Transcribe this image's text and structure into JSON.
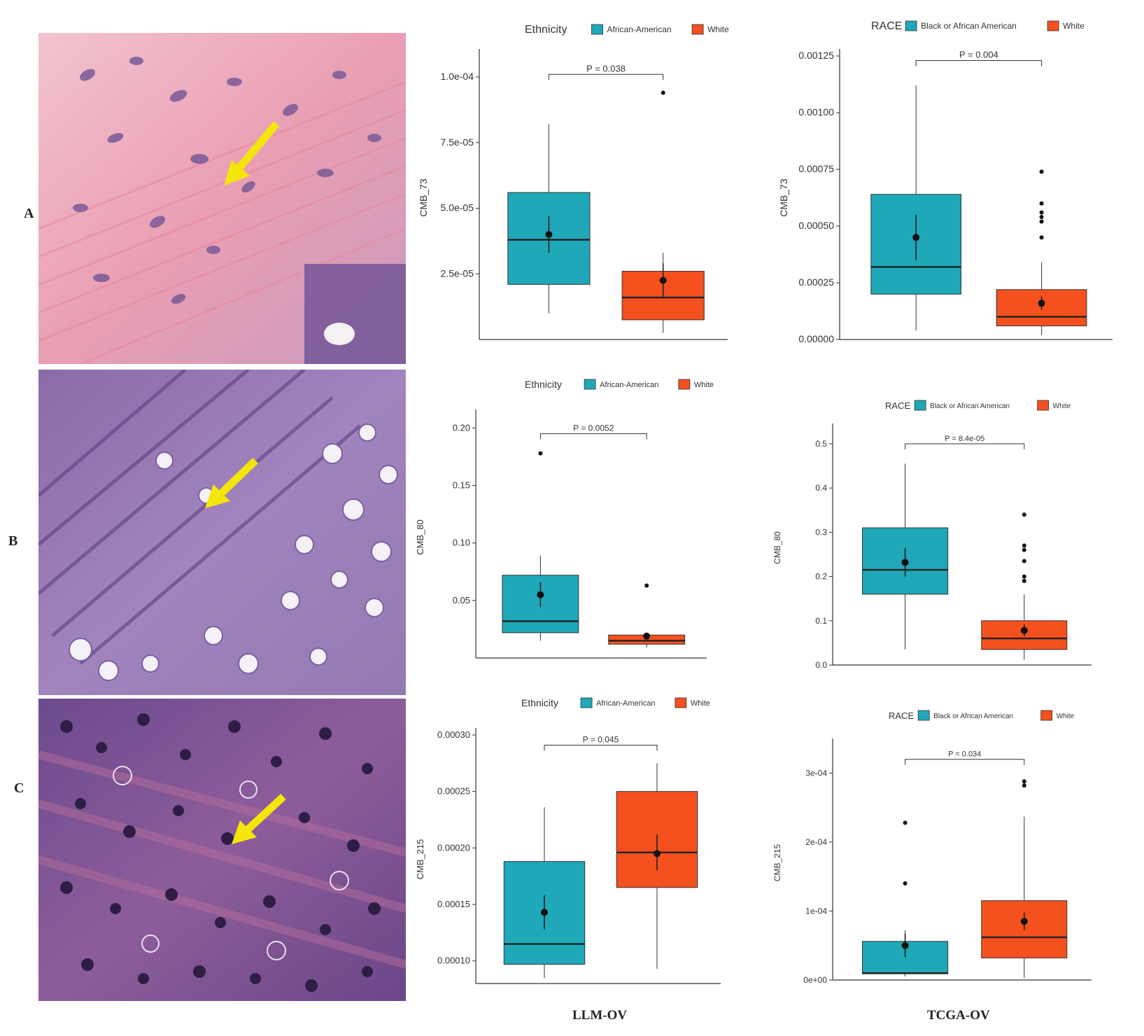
{
  "panels": [
    {
      "letter": "A",
      "image": "histology-pink-stroma",
      "arrow_color": "#f5e60a"
    },
    {
      "letter": "B",
      "image": "histology-purple-glandular",
      "arrow_color": "#f5e60a"
    },
    {
      "letter": "C",
      "image": "histology-dense-purple-cells",
      "arrow_color": "#f5e60a"
    }
  ],
  "colors": {
    "teal": "#1fa8b8",
    "orange": "#f4511e"
  },
  "captions": {
    "left": "LLM-OV",
    "right": "TCGA-OV"
  },
  "chart_data": [
    {
      "id": "A-llm",
      "type": "box",
      "legend_title": "Ethnicity",
      "legend": [
        "African-American",
        "White"
      ],
      "ylabel": "CMB_73",
      "ylim": [
        0,
        0.000108
      ],
      "yticks": [
        2.5e-05,
        5e-05,
        7.5e-05,
        0.0001
      ],
      "ytick_labels": [
        "2.5e-05",
        "5.0e-05",
        "7.5e-05",
        "1.0e-04"
      ],
      "pvalue": "P = 0.038",
      "bracket_y": 0.000101,
      "groups": [
        {
          "name": "African-American",
          "color": "#1fa8b8",
          "whisker_low": 1e-05,
          "q1": 2.1e-05,
          "median": 3.8e-05,
          "q3": 5.6e-05,
          "whisker_high": 8.2e-05,
          "mean": 4e-05,
          "ci": [
            3.3e-05,
            4.7e-05
          ],
          "outliers": []
        },
        {
          "name": "White",
          "color": "#f4511e",
          "whisker_low": 2.5e-06,
          "q1": 7.5e-06,
          "median": 1.6e-05,
          "q3": 2.6e-05,
          "whisker_high": 3.3e-05,
          "mean": 2.25e-05,
          "ci": [
            1.6e-05,
            2.9e-05
          ],
          "outliers": [
            9.4e-05
          ]
        }
      ]
    },
    {
      "id": "A-tcga",
      "type": "box",
      "legend_title": "RACE",
      "legend": [
        "Black or African American",
        "White"
      ],
      "ylabel": "CMB_73",
      "ylim": [
        0,
        0.00125
      ],
      "yticks": [
        0,
        0.00025,
        0.0005,
        0.00075,
        0.001,
        0.00125
      ],
      "ytick_labels": [
        "0.00000",
        "0.00025",
        "0.00050",
        "0.00075",
        "0.00100",
        "0.00125"
      ],
      "pvalue": "P = 0.004",
      "bracket_y": 0.00123,
      "groups": [
        {
          "name": "Black or African American",
          "color": "#1fa8b8",
          "whisker_low": 4e-05,
          "q1": 0.0002,
          "median": 0.00032,
          "q3": 0.00064,
          "whisker_high": 0.00112,
          "mean": 0.00045,
          "ci": [
            0.00035,
            0.00055
          ],
          "outliers": []
        },
        {
          "name": "White",
          "color": "#f4511e",
          "whisker_low": 2e-05,
          "q1": 6e-05,
          "median": 0.0001,
          "q3": 0.00022,
          "whisker_high": 0.00034,
          "mean": 0.00016,
          "ci": [
            0.00013,
            0.00019
          ],
          "outliers": [
            0.00045,
            0.00052,
            0.00054,
            0.00056,
            0.0006,
            0.00074
          ]
        }
      ]
    },
    {
      "id": "B-llm",
      "type": "box",
      "legend_title": "Ethnicity",
      "legend": [
        "African-American",
        "White"
      ],
      "ylabel": "CMB_80",
      "ylim": [
        0,
        0.21
      ],
      "yticks": [
        0.05,
        0.1,
        0.15,
        0.2
      ],
      "ytick_labels": [
        "0.05",
        "0.10",
        "0.15",
        "0.20"
      ],
      "pvalue": "P = 0.0052",
      "bracket_y": 0.195,
      "groups": [
        {
          "name": "African-American",
          "color": "#1fa8b8",
          "whisker_low": 0.015,
          "q1": 0.022,
          "median": 0.032,
          "q3": 0.072,
          "whisker_high": 0.089,
          "mean": 0.055,
          "ci": [
            0.044,
            0.066
          ],
          "outliers": [
            0.178
          ]
        },
        {
          "name": "White",
          "color": "#f4511e",
          "whisker_low": 0.009,
          "q1": 0.012,
          "median": 0.015,
          "q3": 0.02,
          "whisker_high": 0.022,
          "mean": 0.019,
          "ci": [
            0.016,
            0.022
          ],
          "outliers": [
            0.063
          ]
        }
      ]
    },
    {
      "id": "B-tcga",
      "type": "box",
      "legend_title": "RACE",
      "legend": [
        "Black or African American",
        "White"
      ],
      "ylabel": "CMB_80",
      "ylim": [
        0,
        0.53
      ],
      "yticks": [
        0,
        0.1,
        0.2,
        0.3,
        0.4,
        0.5
      ],
      "ytick_labels": [
        "0.0",
        "0.1",
        "0.2",
        "0.3",
        "0.4",
        "0.5"
      ],
      "pvalue": "P = 8.4e-05",
      "bracket_y": 0.5,
      "groups": [
        {
          "name": "Black or African American",
          "color": "#1fa8b8",
          "whisker_low": 0.035,
          "q1": 0.16,
          "median": 0.215,
          "q3": 0.31,
          "whisker_high": 0.455,
          "mean": 0.232,
          "ci": [
            0.2,
            0.265
          ],
          "outliers": []
        },
        {
          "name": "White",
          "color": "#f4511e",
          "whisker_low": 0.012,
          "q1": 0.035,
          "median": 0.06,
          "q3": 0.1,
          "whisker_high": 0.16,
          "mean": 0.078,
          "ci": [
            0.065,
            0.092
          ],
          "outliers": [
            0.19,
            0.2,
            0.235,
            0.26,
            0.27,
            0.34
          ]
        }
      ]
    },
    {
      "id": "C-llm",
      "type": "box",
      "legend_title": "Ethnicity",
      "legend": [
        "African-American",
        "White"
      ],
      "ylabel": "CMB_215",
      "ylim": [
        8e-05,
        0.0003
      ],
      "yticks": [
        0.0001,
        0.00015,
        0.0002,
        0.00025,
        0.0003
      ],
      "ytick_labels": [
        "0.00010",
        "0.00015",
        "0.00020",
        "0.00025",
        "0.00030"
      ],
      "pvalue": "P = 0.045",
      "bracket_y": 0.000291,
      "groups": [
        {
          "name": "African-American",
          "color": "#1fa8b8",
          "whisker_low": 8.5e-05,
          "q1": 9.7e-05,
          "median": 0.000115,
          "q3": 0.000188,
          "whisker_high": 0.000236,
          "mean": 0.000143,
          "ci": [
            0.000128,
            0.000158
          ],
          "outliers": []
        },
        {
          "name": "White",
          "color": "#f4511e",
          "whisker_low": 9.3e-05,
          "q1": 0.000165,
          "median": 0.000196,
          "q3": 0.00025,
          "whisker_high": 0.000275,
          "mean": 0.000195,
          "ci": [
            0.00018,
            0.000212
          ],
          "outliers": []
        }
      ]
    },
    {
      "id": "C-tcga",
      "type": "box",
      "legend_title": "RACE",
      "legend": [
        "Black or African American",
        "White"
      ],
      "ylabel": "CMB_215",
      "ylim": [
        0,
        0.00034
      ],
      "yticks": [
        0,
        0.0001,
        0.0002,
        0.0003
      ],
      "ytick_labels": [
        "0e+00",
        "1e-04",
        "2e-04",
        "3e-04"
      ],
      "pvalue": "P = 0.034",
      "bracket_y": 0.00032,
      "groups": [
        {
          "name": "Black or African American",
          "color": "#1fa8b8",
          "whisker_low": 5e-06,
          "q1": 9e-06,
          "median": 1e-05,
          "q3": 5.6e-05,
          "whisker_high": 7.2e-05,
          "mean": 5e-05,
          "ci": [
            3.3e-05,
            6.7e-05
          ],
          "outliers": [
            0.00014,
            0.000228
          ]
        },
        {
          "name": "White",
          "color": "#f4511e",
          "whisker_low": 3e-06,
          "q1": 3.2e-05,
          "median": 6.2e-05,
          "q3": 0.000115,
          "whisker_high": 0.000237,
          "mean": 8.5e-05,
          "ci": [
            7.2e-05,
            9.8e-05
          ],
          "outliers": [
            0.000282,
            0.000288
          ]
        }
      ]
    }
  ]
}
